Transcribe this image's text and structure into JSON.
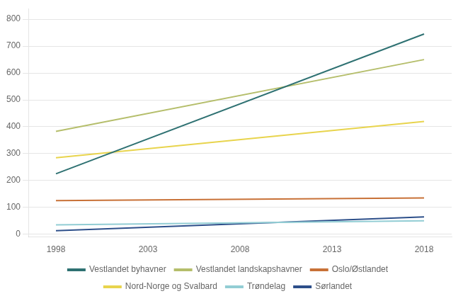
{
  "chart_data": {
    "type": "line",
    "x": [
      1998,
      2018
    ],
    "series": [
      {
        "name": "Vestlandet byhavner",
        "color": "#2e7172",
        "values": [
          225,
          745
        ]
      },
      {
        "name": "Vestlandet landskapshavner",
        "color": "#b5be6b",
        "values": [
          383,
          650
        ]
      },
      {
        "name": "Oslo/Østlandet",
        "color": "#c87137",
        "values": [
          125,
          135
        ]
      },
      {
        "name": "Nord-Norge og Svalbard",
        "color": "#e8d44d",
        "values": [
          285,
          420
        ]
      },
      {
        "name": "Trøndelag",
        "color": "#92cdd4",
        "values": [
          35,
          50
        ]
      },
      {
        "name": "Sørlandet",
        "color": "#2d4f8a",
        "values": [
          13,
          65
        ]
      }
    ],
    "xlim": [
      1996.5,
      2019.5
    ],
    "xticks": [
      1998,
      2003,
      2008,
      2013,
      2018
    ],
    "ylim": [
      -10,
      840
    ],
    "yticks": [
      0,
      100,
      200,
      300,
      400,
      500,
      600,
      700,
      800
    ],
    "grid": true,
    "legend": "bottom"
  }
}
